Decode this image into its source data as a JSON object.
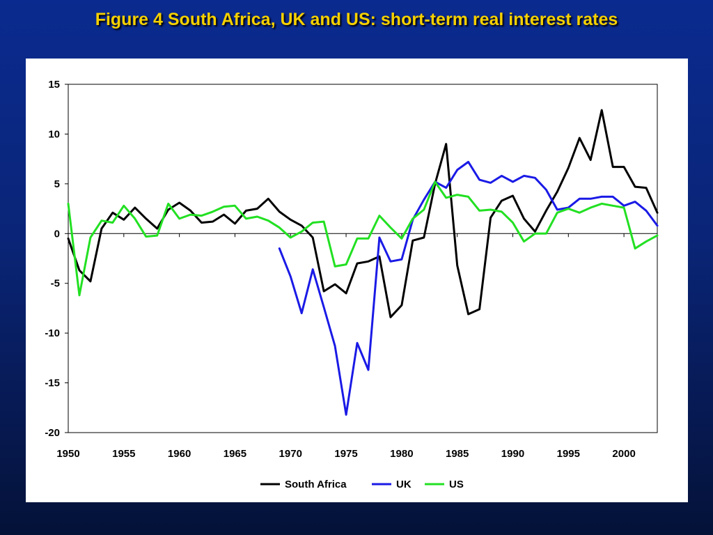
{
  "title": "Figure 4 South Africa, UK and US: short-term real interest rates",
  "colors": {
    "south_africa": "#000000",
    "uk": "#1a1ae6",
    "us": "#22e022",
    "title": "#f5d000"
  },
  "chart_data": {
    "type": "line",
    "title": "",
    "xlabel": "",
    "ylabel": "",
    "xlim": [
      1950,
      2003
    ],
    "ylim": [
      -20,
      15
    ],
    "y_ticks": [
      15,
      10,
      5,
      0,
      -5,
      -10,
      -15,
      -20
    ],
    "x_ticks": [
      1950,
      1955,
      1960,
      1965,
      1970,
      1975,
      1980,
      1985,
      1990,
      1995,
      2000
    ],
    "grid": false,
    "legend_position": "bottom",
    "series": [
      {
        "name": "South Africa",
        "color": "#000000",
        "x": [
          1950,
          1951,
          1952,
          1953,
          1954,
          1955,
          1956,
          1957,
          1958,
          1959,
          1960,
          1961,
          1962,
          1963,
          1964,
          1965,
          1966,
          1967,
          1968,
          1969,
          1970,
          1971,
          1972,
          1973,
          1974,
          1975,
          1976,
          1977,
          1978,
          1979,
          1980,
          1981,
          1982,
          1983,
          1984,
          1985,
          1986,
          1987,
          1988,
          1989,
          1990,
          1991,
          1992,
          1993,
          1994,
          1995,
          1996,
          1997,
          1998,
          1999,
          2000,
          2001,
          2002,
          2003
        ],
        "values": [
          -0.5,
          -3.7,
          -4.8,
          0.5,
          2.1,
          1.4,
          2.6,
          1.5,
          0.5,
          2.4,
          3.1,
          2.3,
          1.1,
          1.2,
          1.9,
          1.0,
          2.3,
          2.5,
          3.5,
          2.2,
          1.4,
          0.8,
          -0.4,
          -5.8,
          -5.1,
          -6.0,
          -3.0,
          -2.8,
          -2.3,
          -8.4,
          -7.2,
          -0.7,
          -0.4,
          5.0,
          9.0,
          -3.2,
          -8.1,
          -7.6,
          1.6,
          3.3,
          3.8,
          1.5,
          0.2,
          2.3,
          4.2,
          6.6,
          9.6,
          7.4,
          12.4,
          6.7,
          6.7,
          4.7,
          4.6,
          2.1
        ]
      },
      {
        "name": "UK",
        "color": "#1a1ae6",
        "x": [
          1969,
          1970,
          1971,
          1972,
          1973,
          1974,
          1975,
          1976,
          1977,
          1978,
          1979,
          1980,
          1981,
          1982,
          1983,
          1984,
          1985,
          1986,
          1987,
          1988,
          1989,
          1990,
          1991,
          1992,
          1993,
          1994,
          1995,
          1996,
          1997,
          1998,
          1999,
          2000,
          2001,
          2002,
          2003
        ],
        "values": [
          -1.5,
          -4.3,
          -8.0,
          -3.6,
          -7.4,
          -11.3,
          -18.2,
          -11.0,
          -13.7,
          -0.4,
          -2.8,
          -2.6,
          1.4,
          3.4,
          5.2,
          4.6,
          6.4,
          7.2,
          5.4,
          5.1,
          5.8,
          5.2,
          5.8,
          5.6,
          4.4,
          2.4,
          2.6,
          3.5,
          3.5,
          3.7,
          3.7,
          2.8,
          3.2,
          2.3,
          0.8
        ]
      },
      {
        "name": "US",
        "color": "#22e022",
        "x": [
          1950,
          1951,
          1952,
          1953,
          1954,
          1955,
          1956,
          1957,
          1958,
          1959,
          1960,
          1961,
          1962,
          1963,
          1964,
          1965,
          1966,
          1967,
          1968,
          1969,
          1970,
          1971,
          1972,
          1973,
          1974,
          1975,
          1976,
          1977,
          1978,
          1979,
          1980,
          1981,
          1982,
          1983,
          1984,
          1985,
          1986,
          1987,
          1988,
          1989,
          1990,
          1991,
          1992,
          1993,
          1994,
          1995,
          1996,
          1997,
          1998,
          1999,
          2000,
          2001,
          2002,
          2003
        ],
        "values": [
          3.0,
          -6.2,
          -0.4,
          1.3,
          1.1,
          2.8,
          1.5,
          -0.3,
          -0.2,
          3.0,
          1.5,
          1.9,
          1.8,
          2.2,
          2.7,
          2.8,
          1.5,
          1.7,
          1.3,
          0.6,
          -0.4,
          0.2,
          1.1,
          1.2,
          -3.3,
          -3.1,
          -0.5,
          -0.5,
          1.8,
          0.6,
          -0.5,
          1.5,
          2.4,
          5.2,
          3.6,
          3.9,
          3.7,
          2.3,
          2.4,
          2.2,
          1.1,
          -0.8,
          0.0,
          0.0,
          2.1,
          2.5,
          2.1,
          2.6,
          3.0,
          2.8,
          2.6,
          -1.5,
          -0.8,
          -0.2
        ]
      }
    ]
  }
}
